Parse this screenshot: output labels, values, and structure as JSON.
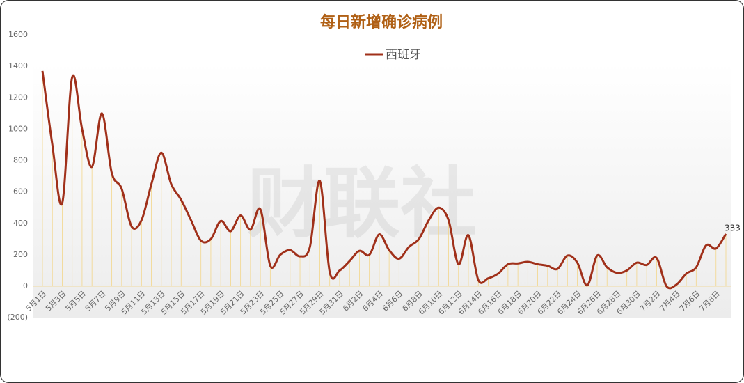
{
  "chart_data": {
    "type": "line",
    "title": "每日新增确诊病例",
    "watermark": "财联社",
    "categories": [
      "5月1日",
      null,
      "5月3日",
      null,
      "5月5日",
      null,
      "5月7日",
      null,
      "5月9日",
      null,
      "5月11日",
      null,
      "5月13日",
      null,
      "5月15日",
      null,
      "5月17日",
      null,
      "5月19日",
      null,
      "5月21日",
      null,
      "5月23日",
      null,
      "5月25日",
      null,
      "5月27日",
      null,
      "5月29日",
      null,
      "5月31日",
      null,
      "6月2日",
      null,
      "6月4日",
      null,
      "6月6日",
      null,
      "6月8日",
      null,
      "6月10日",
      null,
      "6月12日",
      null,
      "6月14日",
      null,
      "6月16日",
      null,
      "6月18日",
      null,
      "6月20日",
      null,
      "6月22日",
      null,
      "6月24日",
      null,
      "6月26日",
      null,
      "6月28日",
      null,
      "6月30日",
      null,
      "7月2日",
      null,
      "7月4日",
      null,
      "7月6日",
      null,
      "7月8日",
      null
    ],
    "series": [
      {
        "name": "西班牙",
        "color": "#a0301a",
        "values": [
          1370,
          900,
          530,
          1330,
          1000,
          760,
          1100,
          720,
          620,
          380,
          420,
          650,
          850,
          650,
          550,
          420,
          290,
          300,
          415,
          350,
          450,
          360,
          490,
          130,
          200,
          230,
          190,
          250,
          670,
          90,
          100,
          160,
          225,
          200,
          330,
          230,
          175,
          250,
          300,
          420,
          500,
          420,
          140,
          325,
          40,
          50,
          80,
          140,
          145,
          155,
          140,
          130,
          110,
          195,
          150,
          5,
          195,
          120,
          85,
          100,
          150,
          135,
          180,
          0,
          10,
          80,
          120,
          260,
          240,
          333
        ]
      }
    ],
    "ylim": [
      -200,
      1600
    ],
    "yticks": [
      {
        "value": -200,
        "label": "(200)"
      },
      0,
      200,
      400,
      600,
      800,
      1000,
      1200,
      1400,
      1600
    ],
    "negative_tick_color": "#d0021b",
    "droplines": true,
    "legend": "top"
  }
}
